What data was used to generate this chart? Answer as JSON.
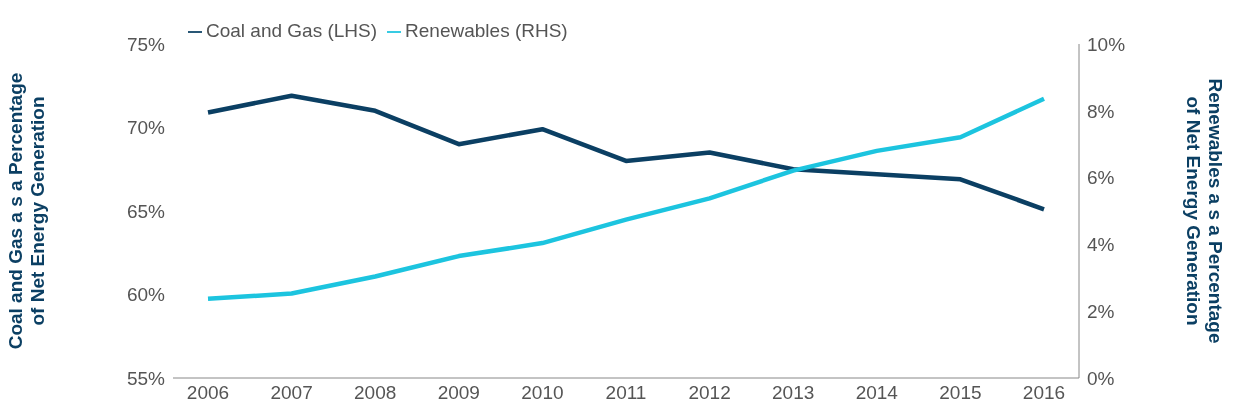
{
  "chart_data": {
    "type": "line",
    "categories": [
      "2006",
      "2007",
      "2008",
      "2009",
      "2010",
      "2011",
      "2012",
      "2013",
      "2014",
      "2015",
      "2016"
    ],
    "ylabel": "Coal and Gas a s a Percentage\nof Net Energy Generation",
    "y2label": "Renewables a s a Percentage\nof Net Energy Generation",
    "series": [
      {
        "name": "Coal and Gas (LHS)",
        "color": "#0b3f63",
        "values": [
          70.9,
          71.9,
          71.0,
          69.0,
          69.9,
          68.0,
          68.5,
          67.5,
          67.2,
          66.9,
          65.1
        ]
      },
      {
        "name": "Renewables (RHS)",
        "color": "#1cc4df",
        "axis": "y2",
        "values": [
          2.37,
          2.53,
          3.04,
          3.65,
          4.04,
          4.74,
          5.38,
          6.21,
          6.8,
          7.21,
          8.36
        ]
      }
    ],
    "ylim": [
      55,
      75
    ],
    "yticks": [
      {
        "value": 55,
        "label": "55%"
      },
      {
        "value": 60,
        "label": "60%"
      },
      {
        "value": 65,
        "label": "65%"
      },
      {
        "value": 70,
        "label": "70%"
      },
      {
        "value": 75,
        "label": "75%"
      }
    ],
    "y2lim": [
      0,
      10
    ],
    "y2ticks": [
      {
        "value": 0,
        "label": "0%"
      },
      {
        "value": 2,
        "label": "2%"
      },
      {
        "value": 4,
        "label": "4%"
      },
      {
        "value": 6,
        "label": "6%"
      },
      {
        "value": 8,
        "label": "8%"
      },
      {
        "value": 10,
        "label": "10%"
      }
    ],
    "grid": false,
    "legend": "top left",
    "marker": "none",
    "line_style": "solid"
  }
}
